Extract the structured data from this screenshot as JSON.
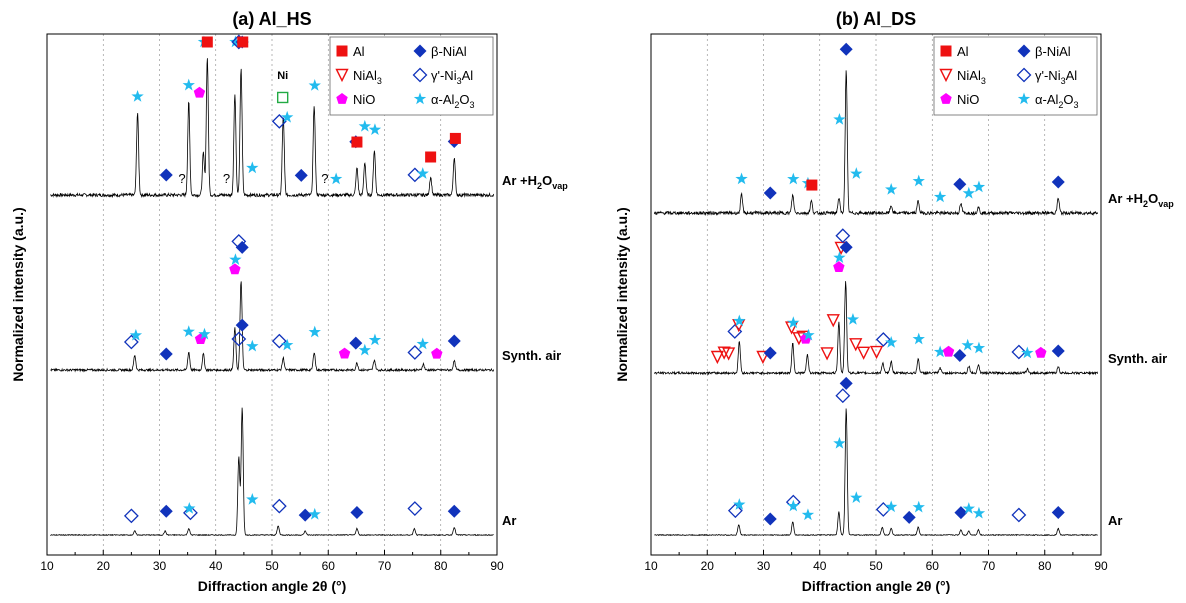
{
  "chart_data": [
    {
      "type": "line",
      "title": "(a) Al_HS",
      "xlabel": "Diffraction angle 2θ (°)",
      "ylabel": "Normalized intensity (a.u.)",
      "xlim": [
        10,
        90
      ],
      "xticks": [
        10,
        20,
        30,
        40,
        50,
        60,
        70,
        80,
        90
      ],
      "xtick_labels": [
        "10",
        "20",
        "30",
        "40",
        "50",
        "60",
        "70",
        "80",
        "90"
      ],
      "grid": "vertical dotted",
      "series": [
        {
          "name": "Ar +H2Ovap",
          "label": {
            "main": "Ar +H",
            "sub": "2",
            "mid": "O",
            "sub2": "vap"
          },
          "baseline": 0.0,
          "peaks": [
            [
              26.1,
              0.55
            ],
            [
              35.2,
              0.62
            ],
            [
              37.8,
              0.28
            ],
            [
              38.5,
              0.92
            ],
            [
              43.4,
              0.68
            ],
            [
              44.5,
              0.85
            ],
            [
              52.0,
              0.52
            ],
            [
              57.5,
              0.6
            ],
            [
              65.1,
              0.18
            ],
            [
              66.5,
              0.22
            ],
            [
              68.2,
              0.3
            ],
            [
              78.2,
              0.12
            ],
            [
              82.4,
              0.25
            ]
          ]
        },
        {
          "name": "Synth. air",
          "label": {
            "main": "Synth. air"
          },
          "baseline": 0.0,
          "peaks": [
            [
              25.6,
              0.15
            ],
            [
              35.2,
              0.18
            ],
            [
              37.8,
              0.16
            ],
            [
              43.4,
              0.42
            ],
            [
              44.5,
              0.9
            ],
            [
              52.0,
              0.12
            ],
            [
              57.5,
              0.18
            ],
            [
              65.1,
              0.07
            ],
            [
              68.2,
              0.1
            ],
            [
              76.9,
              0.06
            ],
            [
              82.4,
              0.09
            ]
          ]
        },
        {
          "name": "Ar",
          "label": {
            "main": "Ar"
          },
          "baseline": 0.0,
          "peaks": [
            [
              25.6,
              0.03
            ],
            [
              31.0,
              0.03
            ],
            [
              35.2,
              0.05
            ],
            [
              44.1,
              0.6
            ],
            [
              44.7,
              0.98
            ],
            [
              51.1,
              0.07
            ],
            [
              55.9,
              0.03
            ],
            [
              65.1,
              0.05
            ],
            [
              75.3,
              0.05
            ],
            [
              82.4,
              0.06
            ]
          ]
        }
      ],
      "annotations": [
        {
          "text": "?",
          "x": 34.0,
          "series": "Ar +H2Ovap"
        },
        {
          "text": "?",
          "x": 41.9,
          "series": "Ar +H2Ovap"
        },
        {
          "text": "?",
          "x": 59.4,
          "series": "Ar +H2Ovap"
        },
        {
          "text": "Ni",
          "x": 51.9,
          "series": "Ar +H2Ovap"
        }
      ],
      "markers": {
        "Ar +H2Ovap": [
          {
            "phase": "alumina",
            "x": 26.1
          },
          {
            "phase": "b-nial",
            "x": 31.2
          },
          {
            "phase": "alumina",
            "x": 35.2
          },
          {
            "phase": "nio",
            "x": 37.1
          },
          {
            "phase": "alumina",
            "x": 37.9
          },
          {
            "phase": "al",
            "x": 38.5
          },
          {
            "phase": "alumina",
            "x": 43.5
          },
          {
            "phase": "g-ni3al",
            "x": 44.1
          },
          {
            "phase": "b-nial",
            "x": 44.7
          },
          {
            "phase": "al",
            "x": 44.8
          },
          {
            "phase": "alumina",
            "x": 46.5
          },
          {
            "phase": "ni",
            "x": 51.9
          },
          {
            "phase": "g-ni3al",
            "x": 51.3
          },
          {
            "phase": "alumina",
            "x": 52.7
          },
          {
            "phase": "b-nial",
            "x": 55.2
          },
          {
            "phase": "alumina",
            "x": 57.6
          },
          {
            "phase": "alumina",
            "x": 61.4
          },
          {
            "phase": "b-nial",
            "x": 64.9
          },
          {
            "phase": "al",
            "x": 65.1
          },
          {
            "phase": "alumina",
            "x": 66.5
          },
          {
            "phase": "alumina",
            "x": 68.3
          },
          {
            "phase": "g-ni3al",
            "x": 75.4
          },
          {
            "phase": "alumina",
            "x": 76.8
          },
          {
            "phase": "al",
            "x": 78.2
          },
          {
            "phase": "b-nial",
            "x": 82.4
          },
          {
            "phase": "al",
            "x": 82.6
          }
        ],
        "Synth. air": [
          {
            "phase": "g-ni3al",
            "x": 25.0
          },
          {
            "phase": "alumina",
            "x": 25.8
          },
          {
            "phase": "b-nial",
            "x": 31.2
          },
          {
            "phase": "alumina",
            "x": 35.2
          },
          {
            "phase": "nio",
            "x": 37.3
          },
          {
            "phase": "alumina",
            "x": 38.0
          },
          {
            "phase": "nio",
            "x": 43.4
          },
          {
            "phase": "alumina",
            "x": 43.5
          },
          {
            "phase": "g-ni3al",
            "x": 44.1
          },
          {
            "phase": "b-nial",
            "x": 44.7
          },
          {
            "phase": "alumina",
            "x": 46.5
          },
          {
            "phase": "g-ni3al",
            "x": 51.3
          },
          {
            "phase": "alumina",
            "x": 52.7
          },
          {
            "phase": "alumina",
            "x": 57.6
          },
          {
            "phase": "nio",
            "x": 62.9
          },
          {
            "phase": "b-nial",
            "x": 64.9
          },
          {
            "phase": "alumina",
            "x": 66.5
          },
          {
            "phase": "alumina",
            "x": 68.3
          },
          {
            "phase": "g-ni3al",
            "x": 75.4
          },
          {
            "phase": "alumina",
            "x": 76.8
          },
          {
            "phase": "nio",
            "x": 79.3
          },
          {
            "phase": "b-nial",
            "x": 82.4
          }
        ],
        "Ar": [
          {
            "phase": "g-ni3al",
            "x": 25.0
          },
          {
            "phase": "b-nial",
            "x": 31.2
          },
          {
            "phase": "g-ni3al",
            "x": 35.5
          },
          {
            "phase": "alumina",
            "x": 35.3
          },
          {
            "phase": "g-ni3al",
            "x": 44.1
          },
          {
            "phase": "b-nial",
            "x": 44.7
          },
          {
            "phase": "alumina",
            "x": 46.5
          },
          {
            "phase": "g-ni3al",
            "x": 51.3
          },
          {
            "phase": "b-nial",
            "x": 55.9
          },
          {
            "phase": "alumina",
            "x": 57.6
          },
          {
            "phase": "b-nial",
            "x": 65.1
          },
          {
            "phase": "g-ni3al",
            "x": 75.4
          },
          {
            "phase": "b-nial",
            "x": 82.4
          }
        ]
      }
    },
    {
      "type": "line",
      "title": "(b) Al_DS",
      "xlabel": "Diffraction angle 2θ (°)",
      "ylabel": "Normalized intensity (a.u.)",
      "xlim": [
        10,
        90
      ],
      "xticks": [
        10,
        20,
        30,
        40,
        50,
        60,
        70,
        80,
        90
      ],
      "xtick_labels": [
        "10",
        "20",
        "30",
        "40",
        "50",
        "60",
        "70",
        "80",
        "90"
      ],
      "grid": "vertical dotted",
      "series": [
        {
          "name": "Ar +H2Ovap",
          "label": {
            "main": "Ar +H",
            "sub": "2",
            "mid": "O",
            "sub2": "vap"
          },
          "baseline": 0.0,
          "peaks": [
            [
              26.1,
              0.12
            ],
            [
              35.2,
              0.12
            ],
            [
              38.5,
              0.08
            ],
            [
              43.4,
              0.1
            ],
            [
              44.7,
              0.95
            ],
            [
              52.7,
              0.05
            ],
            [
              57.5,
              0.08
            ],
            [
              65.1,
              0.06
            ],
            [
              68.2,
              0.04
            ],
            [
              82.4,
              0.1
            ]
          ]
        },
        {
          "name": "Synth. air",
          "label": {
            "main": "Synth. air"
          },
          "baseline": 0.0,
          "peaks": [
            [
              25.7,
              0.32
            ],
            [
              35.2,
              0.3
            ],
            [
              37.8,
              0.18
            ],
            [
              43.4,
              0.52
            ],
            [
              44.6,
              0.92
            ],
            [
              51.2,
              0.1
            ],
            [
              52.7,
              0.12
            ],
            [
              57.5,
              0.14
            ],
            [
              61.4,
              0.05
            ],
            [
              66.5,
              0.07
            ],
            [
              68.2,
              0.08
            ],
            [
              76.9,
              0.04
            ],
            [
              82.4,
              0.06
            ]
          ]
        },
        {
          "name": "Ar",
          "label": {
            "main": "Ar"
          },
          "baseline": 0.0,
          "peaks": [
            [
              25.6,
              0.08
            ],
            [
              35.2,
              0.1
            ],
            [
              43.4,
              0.18
            ],
            [
              44.7,
              0.98
            ],
            [
              51.1,
              0.06
            ],
            [
              52.7,
              0.05
            ],
            [
              57.5,
              0.06
            ],
            [
              65.1,
              0.04
            ],
            [
              66.5,
              0.03
            ],
            [
              68.2,
              0.04
            ],
            [
              82.4,
              0.05
            ]
          ]
        }
      ],
      "annotations": [],
      "markers": {
        "Ar +H2Ovap": [
          {
            "phase": "alumina",
            "x": 26.1
          },
          {
            "phase": "b-nial",
            "x": 31.2
          },
          {
            "phase": "alumina",
            "x": 35.3
          },
          {
            "phase": "alumina",
            "x": 37.9
          },
          {
            "phase": "al",
            "x": 38.6
          },
          {
            "phase": "alumina",
            "x": 43.5
          },
          {
            "phase": "b-nial",
            "x": 44.7
          },
          {
            "phase": "alumina",
            "x": 46.5
          },
          {
            "phase": "alumina",
            "x": 52.7
          },
          {
            "phase": "alumina",
            "x": 57.6
          },
          {
            "phase": "alumina",
            "x": 61.4
          },
          {
            "phase": "b-nial",
            "x": 64.9
          },
          {
            "phase": "alumina",
            "x": 66.5
          },
          {
            "phase": "alumina",
            "x": 68.3
          },
          {
            "phase": "b-nial",
            "x": 82.4
          }
        ],
        "Synth. air": [
          {
            "phase": "nial3",
            "x": 21.8
          },
          {
            "phase": "nial3",
            "x": 23.0
          },
          {
            "phase": "nial3",
            "x": 23.8
          },
          {
            "phase": "g-ni3al",
            "x": 24.9
          },
          {
            "phase": "nial3",
            "x": 25.6
          },
          {
            "phase": "alumina",
            "x": 25.7
          },
          {
            "phase": "nial3",
            "x": 29.9
          },
          {
            "phase": "b-nial",
            "x": 31.2
          },
          {
            "phase": "nial3",
            "x": 35.0
          },
          {
            "phase": "alumina",
            "x": 35.3
          },
          {
            "phase": "nial3",
            "x": 36.3
          },
          {
            "phase": "nial3",
            "x": 37.0
          },
          {
            "phase": "nio",
            "x": 37.5
          },
          {
            "phase": "alumina",
            "x": 38.0
          },
          {
            "phase": "nial3",
            "x": 41.3
          },
          {
            "phase": "nial3",
            "x": 42.4
          },
          {
            "phase": "nio",
            "x": 43.4
          },
          {
            "phase": "alumina",
            "x": 43.5
          },
          {
            "phase": "nial3",
            "x": 43.8
          },
          {
            "phase": "g-ni3al",
            "x": 44.1
          },
          {
            "phase": "b-nial",
            "x": 44.7
          },
          {
            "phase": "alumina",
            "x": 45.9
          },
          {
            "phase": "nial3",
            "x": 46.4
          },
          {
            "phase": "nial3",
            "x": 47.8
          },
          {
            "phase": "nial3",
            "x": 50.1
          },
          {
            "phase": "g-ni3al",
            "x": 51.3
          },
          {
            "phase": "alumina",
            "x": 52.7
          },
          {
            "phase": "alumina",
            "x": 57.6
          },
          {
            "phase": "alumina",
            "x": 61.4
          },
          {
            "phase": "nio",
            "x": 62.9
          },
          {
            "phase": "b-nial",
            "x": 64.9
          },
          {
            "phase": "alumina",
            "x": 66.3
          },
          {
            "phase": "alumina",
            "x": 68.3
          },
          {
            "phase": "g-ni3al",
            "x": 75.4
          },
          {
            "phase": "alumina",
            "x": 76.9
          },
          {
            "phase": "nio",
            "x": 79.3
          },
          {
            "phase": "b-nial",
            "x": 82.4
          }
        ],
        "Ar": [
          {
            "phase": "g-ni3al",
            "x": 25.0
          },
          {
            "phase": "alumina",
            "x": 25.7
          },
          {
            "phase": "b-nial",
            "x": 31.2
          },
          {
            "phase": "g-ni3al",
            "x": 35.3
          },
          {
            "phase": "alumina",
            "x": 35.3
          },
          {
            "phase": "alumina",
            "x": 37.9
          },
          {
            "phase": "alumina",
            "x": 43.5
          },
          {
            "phase": "g-ni3al",
            "x": 44.1
          },
          {
            "phase": "b-nial",
            "x": 44.7
          },
          {
            "phase": "alumina",
            "x": 46.5
          },
          {
            "phase": "g-ni3al",
            "x": 51.3
          },
          {
            "phase": "alumina",
            "x": 52.7
          },
          {
            "phase": "b-nial",
            "x": 55.9
          },
          {
            "phase": "alumina",
            "x": 57.6
          },
          {
            "phase": "b-nial",
            "x": 65.1
          },
          {
            "phase": "alumina",
            "x": 66.5
          },
          {
            "phase": "alumina",
            "x": 68.3
          },
          {
            "phase": "g-ni3al",
            "x": 75.4
          },
          {
            "phase": "b-nial",
            "x": 82.4
          }
        ]
      }
    }
  ],
  "legend": {
    "placement": "top-right",
    "entries": [
      {
        "phase": "al",
        "label": "Al",
        "sub": ""
      },
      {
        "phase": "b-nial",
        "label": "β-NiAl",
        "sub": ""
      },
      {
        "phase": "nial3",
        "label": "NiAl",
        "sub": "3"
      },
      {
        "phase": "g-ni3al",
        "label": "γ'-Ni",
        "sub": "3",
        "tail": "Al"
      },
      {
        "phase": "nio",
        "label": "NiO",
        "sub": ""
      },
      {
        "phase": "alumina",
        "label": "α-Al",
        "sub": "2",
        "tail": "O",
        "sub2": "3"
      }
    ]
  },
  "colors": {
    "al": "#ee1111",
    "nial3": "#ee1111",
    "b-nial": "#1133bb",
    "g-ni3al": "#1133bb",
    "nio": "#ff00ff",
    "alumina": "#22bbee",
    "ni": "#22aa44",
    "trace": "#000000",
    "grid": "#888888"
  }
}
